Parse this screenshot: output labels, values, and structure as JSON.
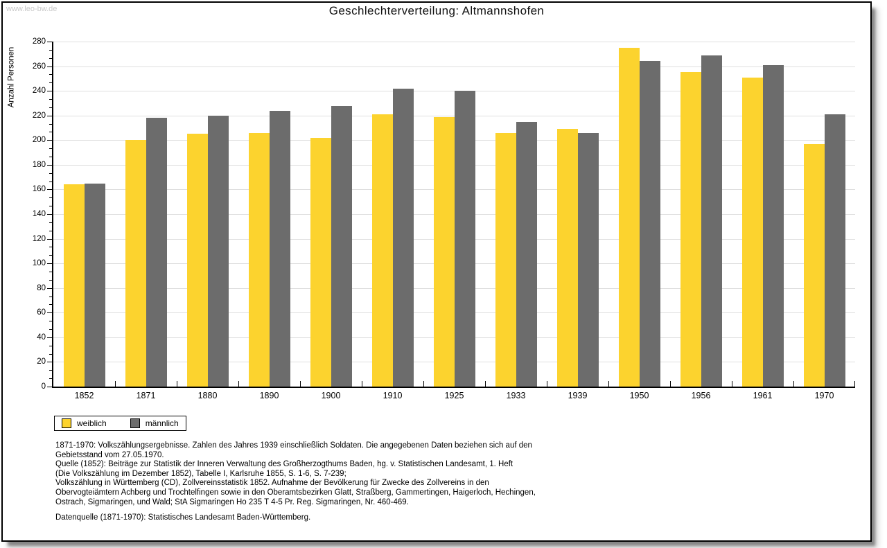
{
  "page": {
    "watermark": "www.leo-bw.de"
  },
  "chart_data": {
    "type": "bar",
    "title": "Geschlechterverteilung: Altmannshofen",
    "xlabel": "",
    "ylabel": "Anzahl Personen",
    "ylim": [
      0,
      280
    ],
    "ytick_step": 20,
    "grid": true,
    "legend_position": "bottom-left",
    "categories": [
      "1852",
      "1871",
      "1880",
      "1890",
      "1900",
      "1910",
      "1925",
      "1933",
      "1939",
      "1950",
      "1956",
      "1961",
      "1970"
    ],
    "series": [
      {
        "name": "weiblich",
        "color": "#FCD32E",
        "values": [
          164,
          200,
          205,
          206,
          202,
          221,
          219,
          206,
          209,
          275,
          255,
          251,
          197
        ]
      },
      {
        "name": "männlich",
        "color": "#6C6C6C",
        "values": [
          165,
          218,
          220,
          224,
          228,
          242,
          240,
          215,
          206,
          264,
          269,
          261,
          221
        ]
      }
    ]
  },
  "footer": {
    "lines": [
      "1871-1970: Volkszählungsergebnisse. Zahlen des Jahres 1939 einschließlich Soldaten. Die angegebenen Daten beziehen sich auf den",
      "Gebietsstand vom 27.05.1970.",
      "Quelle (1852): Beiträge zur Statistik der Inneren Verwaltung des Großherzogthums Baden, hg. v. Statistischen Landesamt, 1. Heft",
      "(Die Volkszählung im Dezember 1852), Tabelle I, Karlsruhe 1855, S. 1-6, S. 7-239;",
      "Volkszählung in Württemberg (CD), Zollvereinsstatistik 1852. Aufnahme der Bevölkerung für Zwecke des Zollvereins in den",
      "Obervogteiämtern Achberg und Trochtelfingen sowie in den Oberamtsbezirken Glatt, Straßberg, Gammertingen, Haigerloch, Hechingen,",
      "Ostrach, Sigmaringen, und Wald; StA Sigmaringen Ho 235 T 4-5 Pr. Reg. Sigmaringen, Nr. 460-469."
    ],
    "datasource_line": "Datenquelle (1871-1970): Statistisches Landesamt Baden-Württemberg."
  },
  "colors": {
    "female_bar": "#FCD32E",
    "male_bar": "#6C6C6C",
    "gridline": "#DEDEDE",
    "axis": "#000000",
    "watermark": "#C9C9C9",
    "panel_border": "#000000"
  }
}
